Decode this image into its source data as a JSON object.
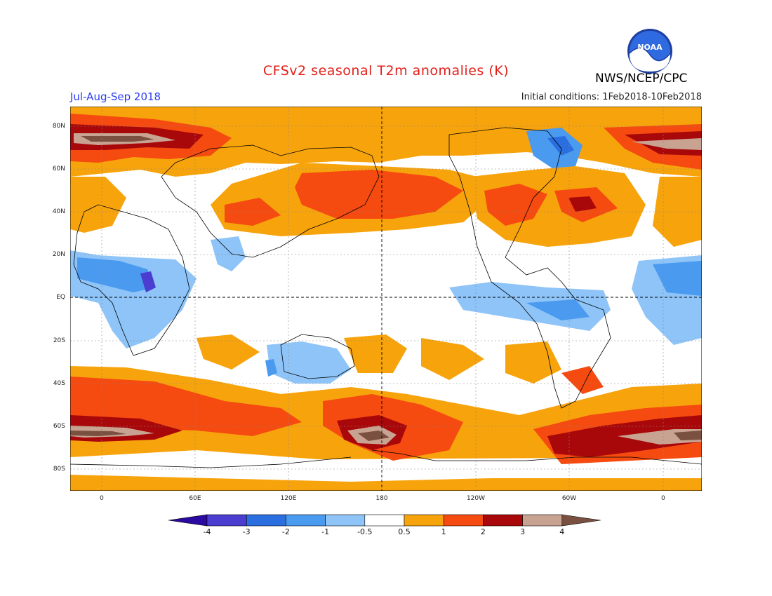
{
  "title": "CFSv2 seasonal T2m anomalies (K)",
  "period": "Jul-Aug-Sep 2018",
  "initial_conditions": "Initial conditions: 1Feb2018-10Feb2018",
  "agency": "NWS/NCEP/CPC",
  "logo_text": "NOAA",
  "lat_ticks": [
    "80N",
    "60N",
    "40N",
    "20N",
    "EQ",
    "20S",
    "40S",
    "60S",
    "80S"
  ],
  "lon_ticks": [
    "0",
    "60E",
    "120E",
    "180",
    "120W",
    "60W",
    "0"
  ],
  "colorbar": {
    "labels": [
      "-4",
      "-3",
      "-2",
      "-1",
      "-0.5",
      "0.5",
      "1",
      "2",
      "3",
      "4"
    ],
    "colors": [
      "#2a0aa0",
      "#4a3dd0",
      "#2a6ee0",
      "#4a9af0",
      "#8ec4f7",
      "#ffffff",
      "#f7a30c",
      "#f54a10",
      "#a8080a",
      "#c9a391",
      "#7a5040"
    ]
  },
  "map_colors": {
    "warm1": "#f7a30c",
    "warm2": "#f54a10",
    "warm3": "#a8080a",
    "warm4": "#c9a391",
    "warm5": "#7a5040",
    "cool1": "#8ec4f7",
    "cool2": "#4a9af0",
    "cool3": "#2a6ee0",
    "cool4": "#4a3dd0"
  }
}
